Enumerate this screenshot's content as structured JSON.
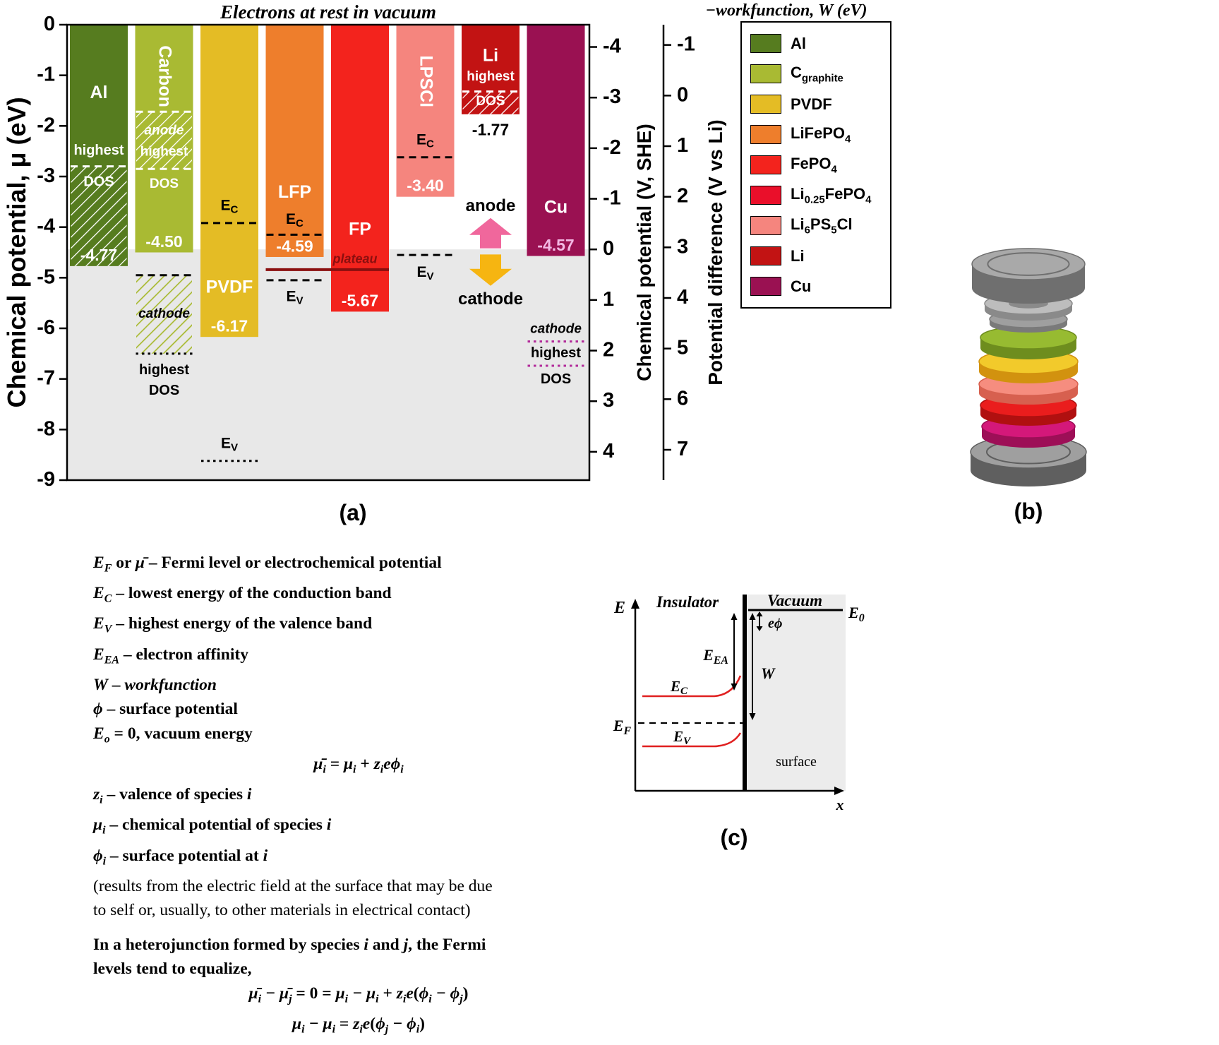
{
  "captions": {
    "a": "(a)",
    "b": "(b)",
    "c": "(c)"
  },
  "workfunction_note": "−workfunction, W (eV)",
  "chart_data": {
    "type": "bar",
    "title": "Electrons at rest in vacuum",
    "ylabel": "Chemical potential, μ (eV)",
    "ylim": [
      -9,
      0
    ],
    "yticks": [
      0,
      -1,
      -2,
      -3,
      -4,
      -5,
      -6,
      -7,
      -8,
      -9
    ],
    "shaded_region_top_eV": -4.44,
    "right_axis_she": {
      "label": "Chemical potential (V, SHE)",
      "ticks": [
        -4,
        -3,
        -2,
        -1,
        0,
        1,
        2,
        3,
        4
      ],
      "zero_at_eV": -4.44
    },
    "right_axis_li": {
      "label": "Potential difference (V vs Li)",
      "ticks": [
        -1,
        0,
        1,
        2,
        3,
        4,
        5,
        6,
        7
      ],
      "zero_at_eV": -1.4
    },
    "materials": [
      {
        "name": "Al",
        "label": "Al",
        "color": "#567c1f",
        "mu_eV": -4.77,
        "value": "-4.77",
        "value_eV": -4.58,
        "value_color": "#ffffff",
        "label_eV": -1.35,
        "rotated": false,
        "extras": [
          {
            "type": "hatch",
            "top": -2.8,
            "bottom": -4.77,
            "pattern": "white"
          },
          {
            "type": "hline",
            "eV": -2.8,
            "color": "#ffffff",
            "dash": "dashed"
          },
          {
            "type": "text",
            "text": "highest",
            "eV": -2.5,
            "color": "#ffffff",
            "size": 20
          },
          {
            "type": "text",
            "text": "DOS",
            "eV": -3.12,
            "color": "#ffffff",
            "size": 20
          }
        ]
      },
      {
        "name": "Carbon",
        "label": "Carbon",
        "color": "#a9ba33",
        "mu_eV": -4.5,
        "value": "-4.50",
        "value_eV": -4.31,
        "value_color": "#ffffff",
        "label_eV": -1.02,
        "rotated": true,
        "extras": [
          {
            "type": "hatch",
            "top": -1.72,
            "bottom": -2.85,
            "pattern": "white"
          },
          {
            "type": "hline",
            "eV": -1.72,
            "color": "#ffffff",
            "dash": "dashed"
          },
          {
            "type": "hline",
            "eV": -2.85,
            "color": "#ffffff",
            "dash": "dashed"
          },
          {
            "type": "text",
            "text": "anode",
            "eV": -2.1,
            "color": "#ffffff",
            "size": 19,
            "italic": true
          },
          {
            "type": "text",
            "text": "highest",
            "eV": -2.52,
            "color": "#ffffff",
            "size": 19
          },
          {
            "type": "text",
            "text": "DOS",
            "eV": -3.15,
            "color": "#ffffff",
            "size": 19
          },
          {
            "type": "hatch",
            "top": -4.95,
            "bottom": -6.5,
            "pattern": "carbon"
          },
          {
            "type": "hline",
            "eV": -4.95,
            "color": "#000000",
            "dash": "dashed"
          },
          {
            "type": "hline",
            "eV": -6.5,
            "color": "#000000",
            "dash": "dotted"
          },
          {
            "type": "text",
            "text": "cathode",
            "eV": -5.72,
            "color": "#000000",
            "size": 19,
            "italic": true
          },
          {
            "type": "text",
            "text": "highest",
            "eV": -6.84,
            "color": "#000000",
            "size": 20
          },
          {
            "type": "text",
            "text": "DOS",
            "eV": -7.24,
            "color": "#000000",
            "size": 20
          }
        ]
      },
      {
        "name": "PVDF",
        "label": "PVDF",
        "color": "#e4bc25",
        "mu_eV": -6.17,
        "value": "-6.17",
        "value_eV": -5.98,
        "value_color": "#ffffff",
        "label_eV": -5.2,
        "rotated": false,
        "extras": [
          {
            "type": "text",
            "text": "E_{C}",
            "eV": -3.58,
            "color": "#000000",
            "size": 21
          },
          {
            "type": "hline",
            "eV": -3.92,
            "color": "#000000",
            "dash": "dashed"
          },
          {
            "type": "text",
            "text": "E_{V}",
            "eV": -8.28,
            "color": "#000000",
            "size": 21
          },
          {
            "type": "hline",
            "eV": -8.62,
            "color": "#000000",
            "dash": "dotted"
          }
        ]
      },
      {
        "name": "LFP",
        "label": "LFP",
        "color": "#ee7e2c",
        "mu_eV": -4.59,
        "value": "-4.59",
        "value_eV": -4.4,
        "value_color": "#ffffff",
        "label_eV": -3.32,
        "rotated": false,
        "extras": [
          {
            "type": "text",
            "text": "E_{C}",
            "eV": -3.85,
            "color": "#000000",
            "size": 21
          },
          {
            "type": "hline",
            "eV": -4.15,
            "color": "#000000",
            "dash": "dashed"
          },
          {
            "type": "hline",
            "eV": -5.05,
            "color": "#000000",
            "dash": "dashed"
          },
          {
            "type": "text",
            "text": "E_{V}",
            "eV": -5.38,
            "color": "#000000",
            "size": 21
          }
        ]
      },
      {
        "name": "FP",
        "label": "FP",
        "color": "#f3231d",
        "mu_eV": -5.67,
        "value": "-5.67",
        "value_eV": -5.48,
        "value_color": "#ffffff",
        "label_eV": -4.05,
        "rotated": false,
        "extras": []
      },
      {
        "name": "LPSCl",
        "label": "LPSCl",
        "color": "#f5857e",
        "mu_eV": -3.4,
        "value": "-3.40",
        "value_eV": -3.2,
        "value_color": "#ffffff",
        "label_eV": -1.12,
        "rotated": true,
        "extras": [
          {
            "type": "text",
            "text": "E_{C}",
            "eV": -2.28,
            "color": "#000000",
            "size": 21
          },
          {
            "type": "hline",
            "eV": -2.62,
            "color": "#000000",
            "dash": "dashed"
          },
          {
            "type": "hline",
            "eV": -4.55,
            "color": "#000000",
            "dash": "dashed"
          },
          {
            "type": "text",
            "text": "E_{V}",
            "eV": -4.9,
            "color": "#000000",
            "size": 21
          }
        ]
      },
      {
        "name": "Li",
        "label": "Li",
        "color": "#c21313",
        "mu_eV": -1.77,
        "value": "-1.77",
        "value_eV": -2.1,
        "value_color": "#000000",
        "label_eV": -0.62,
        "rotated": false,
        "extras": [
          {
            "type": "hatch",
            "top": -1.32,
            "bottom": -1.77,
            "pattern": "white"
          },
          {
            "type": "hline",
            "eV": -1.32,
            "color": "#ffffff",
            "dash": "dashed"
          },
          {
            "type": "text",
            "text": "highest",
            "eV": -1.03,
            "color": "#ffffff",
            "size": 19
          },
          {
            "type": "text",
            "text": "DOS",
            "eV": -1.52,
            "color": "#ffffff",
            "size": 19
          }
        ]
      },
      {
        "name": "Cu",
        "label": "Cu",
        "color": "#9a1152",
        "mu_eV": -4.57,
        "value": "-4.57",
        "value_eV": -4.38,
        "value_color": "#f3b9e4",
        "label_eV": -3.62,
        "rotated": false,
        "extras": [
          {
            "type": "text",
            "text": "cathode",
            "eV": -6.02,
            "color": "#000000",
            "size": 19,
            "italic": true
          },
          {
            "type": "hline",
            "eV": -6.26,
            "color": "#b22b9a",
            "dash": "dotted"
          },
          {
            "type": "text",
            "text": "highest",
            "eV": -6.5,
            "color": "#000000",
            "size": 20
          },
          {
            "type": "hline",
            "eV": -6.74,
            "color": "#b22b9a",
            "dash": "dotted"
          },
          {
            "type": "text",
            "text": "DOS",
            "eV": -7.02,
            "color": "#000000",
            "size": 20
          }
        ]
      }
    ],
    "annotations": {
      "plateau": {
        "label": "plateau",
        "line_eV": -4.84,
        "label_eV": -4.64,
        "from_bar": 3,
        "to_bar": 4,
        "color": "#8a0f0f"
      },
      "anode_cathode": {
        "bar": 6,
        "anode_label": "anode",
        "cathode_label": "cathode",
        "anode_eV": -3.6,
        "cathode_eV": -5.44,
        "up_arrow_color": "#f0679c",
        "down_arrow_color": "#f6b511"
      }
    }
  },
  "legend": {
    "items": [
      {
        "label": "Al",
        "color": "#567c1f"
      },
      {
        "label": "C_{graphite}",
        "color": "#a9ba33"
      },
      {
        "label": "PVDF",
        "color": "#e4bc25"
      },
      {
        "label": "LiFePO_{4}",
        "color": "#ee7e2c"
      },
      {
        "label": "FePO_{4}",
        "color": "#f3231d"
      },
      {
        "label": "Li_{0.25}FePO_{4}",
        "color": "#ea0f2a"
      },
      {
        "label": "Li_{6}PS_{5}Cl",
        "color": "#f5857e"
      },
      {
        "label": "Li",
        "color": "#c21313"
      },
      {
        "label": "Cu",
        "color": "#9a1152"
      }
    ]
  },
  "coin_cell": {
    "discs": [
      {
        "name": "casing-top",
        "top": "#a9a9a9",
        "side": "#6f6f6f"
      },
      {
        "name": "spacer-ring",
        "top": "#bdbdbd",
        "side": "#8a8a8a"
      },
      {
        "name": "spacer-disc",
        "top": "#9f9f9f",
        "side": "#7a7a7a"
      },
      {
        "name": "disc-green",
        "top": "#97bb31",
        "side": "#6e8d1e"
      },
      {
        "name": "disc-yellow",
        "top": "#f2ca2b",
        "side": "#d2920f"
      },
      {
        "name": "disc-salmon",
        "top": "#f68d7f",
        "side": "#d7604f"
      },
      {
        "name": "disc-red",
        "top": "#ea1d1d",
        "side": "#b01010"
      },
      {
        "name": "disc-magenta",
        "top": "#d4187a",
        "side": "#9d0f57"
      },
      {
        "name": "casing-bottom",
        "top": "#9f9f9f",
        "side": "#5f5f5f"
      }
    ]
  },
  "band_diagram": {
    "labels": {
      "e_axis": "E",
      "x_axis": "x",
      "insulator": "Insulator",
      "vacuum": "Vacuum",
      "e0": "E_{0}",
      "ephi": "eϕ",
      "eea": "E_{EA}",
      "w": "W",
      "ec": "E_{C}",
      "ef": "E_{F}",
      "ev": "E_{V}",
      "surface": "surface"
    }
  },
  "definitions": {
    "lines": [
      {
        "text": "*E_{F}* or *μ̄* – Fermi level or electrochemical potential"
      },
      {
        "text": "*E_{C}* – lowest energy of the conduction band"
      },
      {
        "text": "*E_{V}* – highest energy of the valence band"
      },
      {
        "text": "*E_{EA}* – electron affinity"
      },
      {
        "text": "*W* – *workfunction*"
      },
      {
        "text": "*ϕ* – surface potential"
      },
      {
        "text": "*E_{o}* = 0, vacuum energy"
      },
      {
        "text": "*μ̄_{i}* = *μ_{i}* + *z_{i}eϕ_{i}*",
        "align": "center"
      },
      {
        "text": "*z_{i}* – valence of species *i*"
      },
      {
        "text": "*μ_{i}* – chemical potential of species *i*"
      },
      {
        "text": "*ϕ_{i}* – surface potential at *i*"
      },
      {
        "text": "(results from the electric field at the surface that may be due",
        "weight": "normal"
      },
      {
        "text": "to self or, usually, to other materials in electrical contact)",
        "weight": "normal"
      },
      {
        "text": "In a heterojunction formed by species *i* and *j*, the Fermi",
        "gap": 14
      },
      {
        "text": "levels tend to equalize,"
      },
      {
        "text": "*μ̄_{i} − μ̄_{j}* = 0 = *μ_{i} − μ_{i}* + *z_{i}e*(*ϕ_{i} − ϕ_{j}*)",
        "align": "center"
      },
      {
        "text": "*μ_{i} − μ_{i}* = *z_{i}e*(*ϕ_{j} − ϕ_{i}*)",
        "align": "center"
      }
    ]
  }
}
